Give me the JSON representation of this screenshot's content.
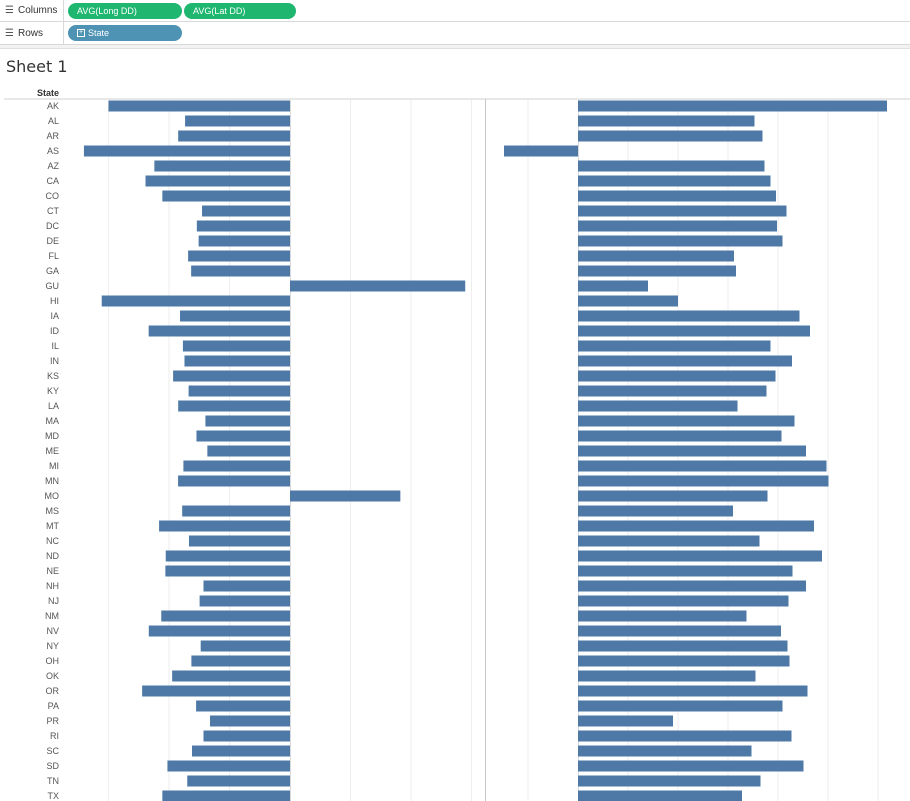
{
  "shelves": {
    "columns_label": "Columns",
    "rows_label": "Rows",
    "columns_pills": [
      "AVG(Long DD)",
      "AVG(Lat DD)"
    ],
    "rows_pill": "State"
  },
  "sheet": {
    "title": "Sheet 1"
  },
  "colors": {
    "bar": "#4e79a7",
    "pill_measure": "#1fb770",
    "pill_dimension": "#4e93b3"
  },
  "chart_data": {
    "type": "bar",
    "orientation": "horizontal",
    "row_header": "State",
    "categories": [
      "AK",
      "AL",
      "AR",
      "AS",
      "AZ",
      "CA",
      "CO",
      "CT",
      "DC",
      "DE",
      "FL",
      "GA",
      "GU",
      "HI",
      "IA",
      "ID",
      "IL",
      "IN",
      "KS",
      "KY",
      "LA",
      "MA",
      "MD",
      "ME",
      "MI",
      "MN",
      "MO",
      "MS",
      "MT",
      "NC",
      "ND",
      "NE",
      "NH",
      "NJ",
      "NM",
      "NV",
      "NY",
      "OH",
      "OK",
      "OR",
      "PA",
      "PR",
      "RI",
      "SC",
      "SD",
      "TN",
      "TX"
    ],
    "series": [
      {
        "name": "AVG(Long DD)",
        "values": [
          -150.0,
          -86.7,
          -92.4,
          -170.3,
          -112.1,
          -119.4,
          -105.5,
          -72.7,
          -77.0,
          -75.5,
          -84.2,
          -81.7,
          144.8,
          -155.6,
          -90.9,
          -116.8,
          -88.5,
          -87.2,
          -96.6,
          -83.8,
          -92.4,
          -69.9,
          -77.3,
          -68.3,
          -88.1,
          -92.5,
          91.2,
          -89.1,
          -108.2,
          -83.5,
          -102.7,
          -103.0,
          -71.5,
          -74.7,
          -106.4,
          -116.7,
          -73.8,
          -81.5,
          -97.4,
          -122.2,
          -77.6,
          -66.1,
          -71.5,
          -81.0,
          -101.3,
          -84.9,
          -105.5
        ]
      },
      {
        "name": "AVG(Lat DD)",
        "values": [
          61.8,
          35.3,
          36.9,
          -14.8,
          37.3,
          38.5,
          39.6,
          41.7,
          39.8,
          40.9,
          31.2,
          31.6,
          14.0,
          20.0,
          44.3,
          46.4,
          38.5,
          42.8,
          39.5,
          37.7,
          31.9,
          43.3,
          40.7,
          45.6,
          49.7,
          50.1,
          37.9,
          31.0,
          47.2,
          36.3,
          48.8,
          42.9,
          45.6,
          42.1,
          33.7,
          40.6,
          41.9,
          42.3,
          35.5,
          45.9,
          40.9,
          19.0,
          42.7,
          34.7,
          45.1,
          36.5,
          32.8
        ]
      }
    ],
    "axis_ranges": {
      "AVG(Long DD)": [
        -170,
        160
      ],
      "AVG(Lat DD)": [
        -20,
        65
      ]
    },
    "grid": true
  }
}
